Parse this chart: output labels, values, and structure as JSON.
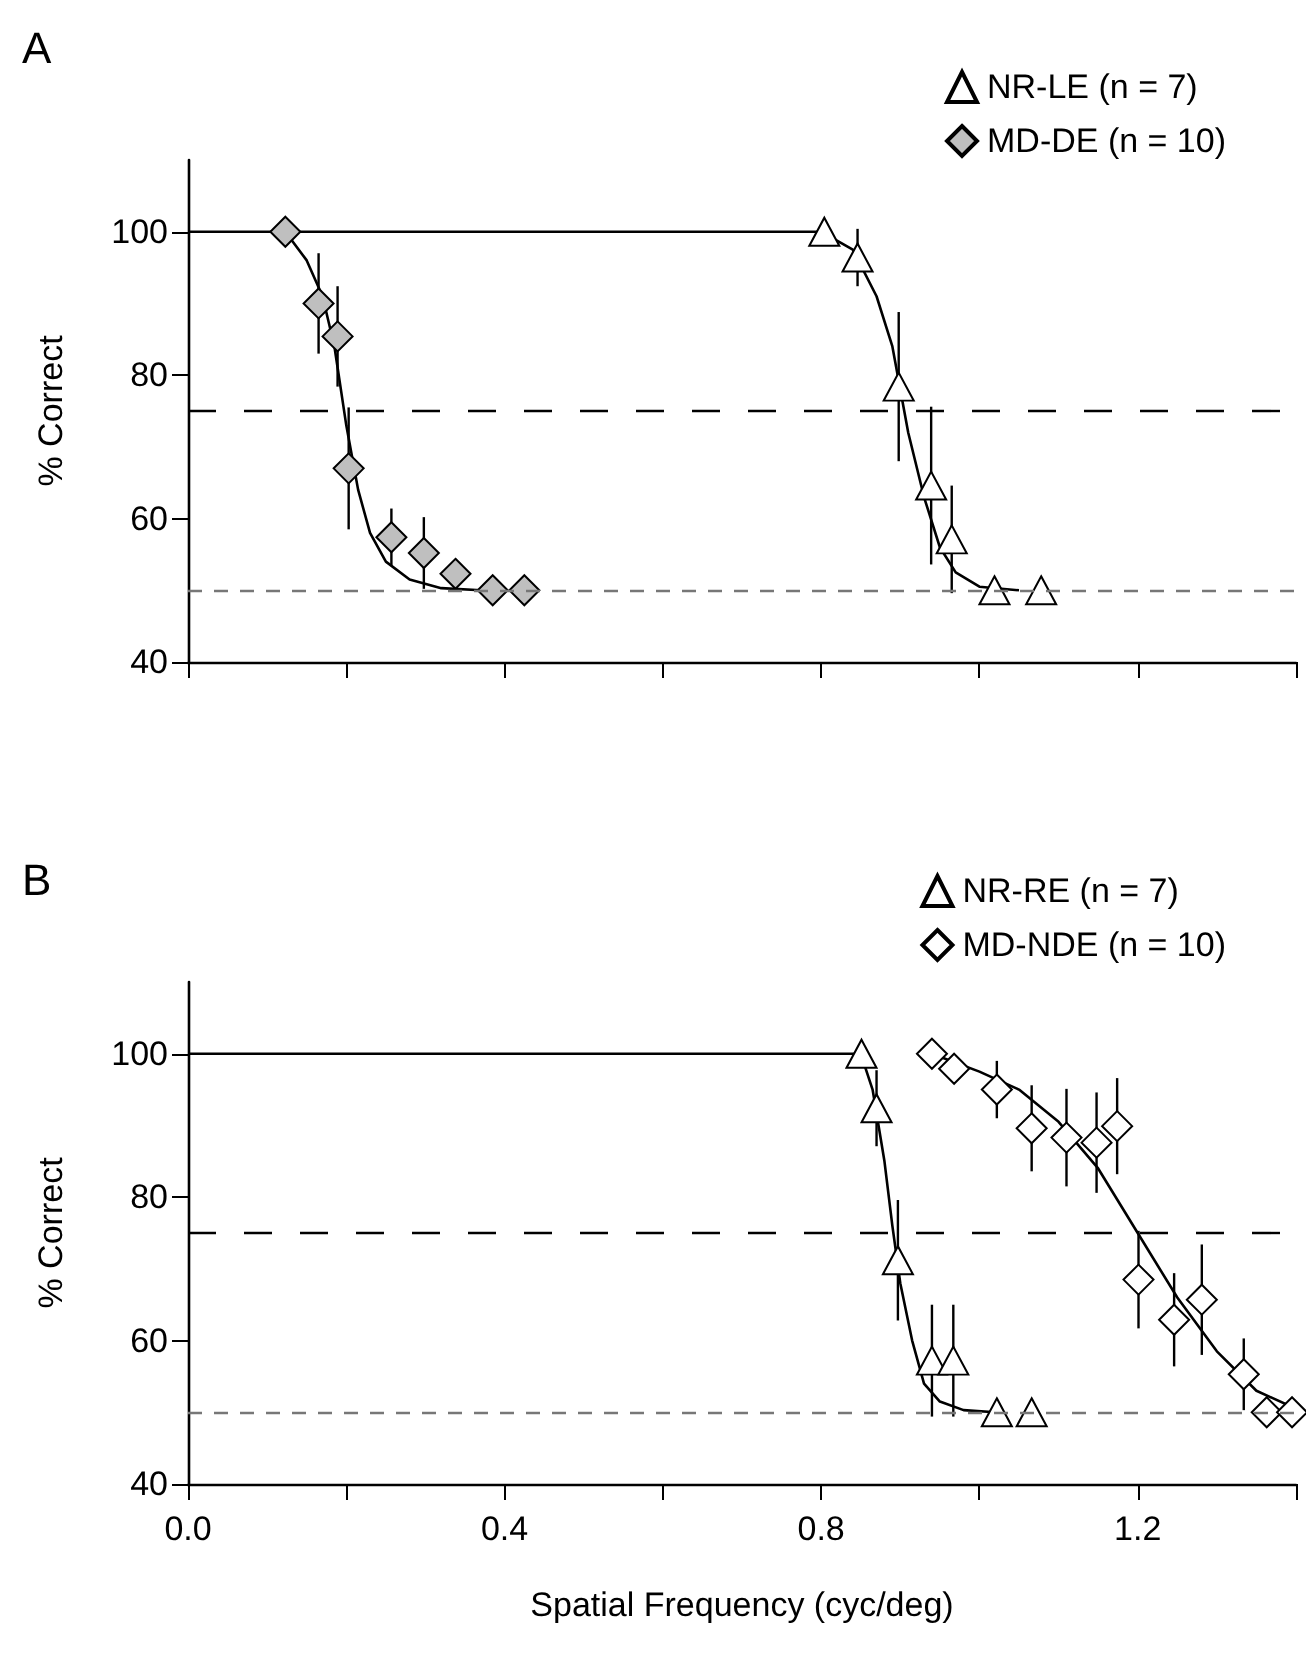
{
  "chart_data": [
    {
      "type": "scatter",
      "title": "A",
      "ylabel": "% Correct",
      "xlim": [
        0,
        1.4
      ],
      "xticks": [
        0,
        0.2,
        0.4,
        0.6,
        0.8,
        1.0,
        1.2,
        1.4
      ],
      "ylim": [
        40,
        110
      ],
      "yticks": [
        40,
        60,
        80,
        100
      ],
      "tick_labels": "y",
      "grid": false,
      "legend": "top right",
      "series": [
        {
          "name": "NR-LE (n = 7)",
          "color": "#ffffff",
          "marker": "triangle",
          "x": [
            0.804,
            0.846,
            0.898,
            0.939,
            0.965,
            1.019,
            1.078
          ],
          "values": [
            100,
            96.4,
            78.4,
            64.6,
            57.1,
            50,
            50
          ],
          "errors": [
            null,
            4,
            10.4,
            11,
            7.5,
            null,
            null
          ]
        },
        {
          "name": "MD-DE (n = 10)",
          "color": "#bfbfbf",
          "marker": "diamond",
          "x": [
            0.123,
            0.165,
            0.189,
            0.203,
            0.257,
            0.298,
            0.338,
            0.385,
            0.425
          ],
          "values": [
            100,
            90,
            85.4,
            67,
            57.4,
            55.2,
            52.3,
            50,
            50
          ],
          "errors": [
            null,
            7,
            7,
            8.5,
            4,
            5,
            null,
            null,
            null
          ]
        },
        {
          "type": "line",
          "color": "#000000",
          "marker": "none",
          "x": [
            0,
            0.8,
            0.84,
            0.87,
            0.89,
            0.91,
            0.93,
            0.95,
            0.97,
            1.0,
            1.05
          ],
          "values": [
            100,
            100,
            97.5,
            91,
            84,
            72,
            63,
            56,
            52.5,
            50.5,
            50
          ]
        },
        {
          "type": "line",
          "color": "#000000",
          "marker": "none",
          "x": [
            0.123,
            0.15,
            0.17,
            0.185,
            0.2,
            0.215,
            0.23,
            0.25,
            0.28,
            0.32,
            0.37
          ],
          "values": [
            100,
            96,
            91,
            84,
            73,
            64,
            58,
            54,
            51.5,
            50.3,
            50
          ]
        }
      ],
      "ref_lines": [
        {
          "axis": "y",
          "value": 75,
          "color": "#000000",
          "line_style": "dashed"
        },
        {
          "axis": "y",
          "value": 50,
          "color": "#777777",
          "line_style": "dashed"
        }
      ]
    },
    {
      "type": "scatter",
      "title": "B",
      "xlabel": "Spatial Frequency (cyc/deg)",
      "ylabel": "% Correct",
      "xlim": [
        0,
        1.4
      ],
      "xticks": [
        {
          "value": 0,
          "label": "0.0"
        },
        {
          "value": 0.2,
          "label": null
        },
        0.4,
        {
          "value": 0.6,
          "label": null
        },
        0.8,
        {
          "value": 1.0,
          "label": null
        },
        1.2,
        {
          "value": 1.4,
          "label": null
        }
      ],
      "ylim": [
        40,
        110
      ],
      "yticks": [
        40,
        60,
        80,
        100
      ],
      "grid": false,
      "legend": "top right",
      "series": [
        {
          "name": "NR-RE (n = 7)",
          "color": "#ffffff",
          "marker": "triangle",
          "x": [
            0.851,
            0.87,
            0.897,
            0.94,
            0.967,
            1.022,
            1.066
          ],
          "values": [
            100,
            92.4,
            71.2,
            57.2,
            57.2,
            50,
            50
          ],
          "errors": [
            null,
            5.3,
            8.4,
            7.8,
            7.8,
            null,
            null
          ]
        },
        {
          "name": "MD-NDE (n = 10)",
          "color": "#ffffff",
          "marker": "diamond",
          "x": [
            0.94,
            0.968,
            1.022,
            1.066,
            1.11,
            1.148,
            1.174,
            1.201,
            1.246,
            1.281,
            1.334,
            1.363,
            1.395
          ],
          "values": [
            100,
            97.9,
            95,
            89.6,
            88.3,
            87.6,
            89.9,
            68.5,
            62.9,
            65.7,
            55.3,
            50,
            50
          ],
          "errors": [
            null,
            null,
            4,
            6,
            6.8,
            7,
            6.7,
            6.8,
            6.5,
            7.7,
            5,
            null,
            null
          ]
        },
        {
          "type": "line",
          "color": "#000000",
          "marker": "none",
          "x": [
            0,
            0.85,
            0.865,
            0.88,
            0.89,
            0.9,
            0.915,
            0.93,
            0.95,
            0.98,
            1.02
          ],
          "values": [
            100,
            100,
            95,
            85,
            76,
            68,
            60,
            54,
            51.5,
            50.3,
            50
          ]
        },
        {
          "type": "line",
          "color": "#000000",
          "marker": "none",
          "x": [
            0.94,
            1.0,
            1.05,
            1.1,
            1.15,
            1.2,
            1.25,
            1.3,
            1.35,
            1.4
          ],
          "values": [
            100,
            97.5,
            95,
            90.5,
            84,
            75,
            66,
            58.5,
            53,
            50.5
          ]
        }
      ],
      "ref_lines": [
        {
          "axis": "y",
          "value": 75,
          "color": "#000000",
          "line_style": "dashed"
        },
        {
          "axis": "y",
          "value": 50,
          "color": "#777777",
          "line_style": "dashed"
        }
      ]
    }
  ]
}
